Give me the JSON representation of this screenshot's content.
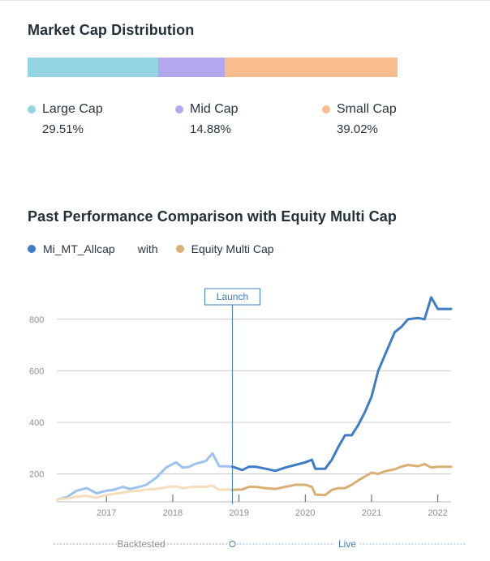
{
  "market_cap": {
    "title": "Market Cap Distribution",
    "segments": [
      {
        "label": "Large Cap",
        "value_text": "29.51%",
        "value": 29.51,
        "color": "#93d4e2"
      },
      {
        "label": "Mid Cap",
        "value_text": "14.88%",
        "value": 14.88,
        "color": "#b3a7ef"
      },
      {
        "label": "Small Cap",
        "value_text": "39.02%",
        "value": 39.02,
        "color": "#f8bc8e"
      }
    ]
  },
  "performance": {
    "title": "Past Performance Comparison with Equity Multi Cap",
    "legend_with": "with",
    "launch_label": "Launch",
    "backtested_label": "Backtested",
    "live_label": "Live"
  },
  "chart_data": {
    "type": "line",
    "title": "Past Performance Comparison with Equity Multi Cap",
    "xlabel": "",
    "ylabel": "",
    "xlim": [
      2016.25,
      2022.2
    ],
    "ylim": [
      95,
      900
    ],
    "yticks": [
      200,
      400,
      600,
      800
    ],
    "xticks": [
      2017,
      2018,
      2019,
      2020,
      2021,
      2022
    ],
    "grid": true,
    "legend": "top-left",
    "launch_x": 2018.9,
    "series": [
      {
        "name": "Mi_MT_Allcap",
        "color": "#3d7cc9",
        "backtested_color": "#9cc3ee",
        "x": [
          2016.25,
          2016.4,
          2016.55,
          2016.7,
          2016.85,
          2017.0,
          2017.1,
          2017.25,
          2017.35,
          2017.5,
          2017.6,
          2017.75,
          2017.9,
          2018.05,
          2018.15,
          2018.25,
          2018.35,
          2018.5,
          2018.6,
          2018.7,
          2018.8,
          2018.9,
          2019.05,
          2019.15,
          2019.25,
          2019.4,
          2019.55,
          2019.7,
          2019.85,
          2020.0,
          2020.1,
          2020.15,
          2020.3,
          2020.4,
          2020.5,
          2020.6,
          2020.7,
          2020.8,
          2020.9,
          2021.0,
          2021.1,
          2021.2,
          2021.35,
          2021.45,
          2021.55,
          2021.7,
          2021.8,
          2021.9,
          2022.0,
          2022.1,
          2022.2
        ],
        "values": [
          100,
          110,
          135,
          145,
          125,
          135,
          138,
          150,
          142,
          150,
          158,
          185,
          225,
          245,
          225,
          228,
          240,
          250,
          280,
          230,
          230,
          228,
          215,
          228,
          228,
          220,
          212,
          225,
          235,
          245,
          255,
          220,
          220,
          255,
          305,
          350,
          350,
          390,
          440,
          500,
          600,
          660,
          750,
          770,
          800,
          805,
          800,
          885,
          840,
          840,
          840
        ]
      },
      {
        "name": "Equity Multi Cap",
        "color": "#d9b071",
        "backtested_color": "#f4dfba",
        "x": [
          2016.25,
          2016.4,
          2016.55,
          2016.7,
          2016.85,
          2017.0,
          2017.1,
          2017.25,
          2017.35,
          2017.5,
          2017.6,
          2017.75,
          2017.9,
          2018.05,
          2018.15,
          2018.25,
          2018.35,
          2018.5,
          2018.6,
          2018.7,
          2018.8,
          2018.9,
          2019.05,
          2019.15,
          2019.25,
          2019.4,
          2019.55,
          2019.7,
          2019.85,
          2020.0,
          2020.1,
          2020.15,
          2020.3,
          2020.4,
          2020.5,
          2020.6,
          2020.7,
          2020.8,
          2020.9,
          2021.0,
          2021.1,
          2021.2,
          2021.35,
          2021.45,
          2021.55,
          2021.7,
          2021.8,
          2021.9,
          2022.0,
          2022.1,
          2022.2
        ],
        "values": [
          100,
          105,
          112,
          115,
          108,
          118,
          122,
          128,
          132,
          135,
          140,
          142,
          148,
          152,
          145,
          148,
          150,
          150,
          155,
          138,
          140,
          138,
          140,
          150,
          150,
          145,
          142,
          150,
          158,
          158,
          150,
          120,
          118,
          138,
          145,
          145,
          158,
          175,
          190,
          205,
          200,
          210,
          218,
          228,
          235,
          230,
          238,
          225,
          228,
          228,
          228
        ]
      }
    ]
  }
}
